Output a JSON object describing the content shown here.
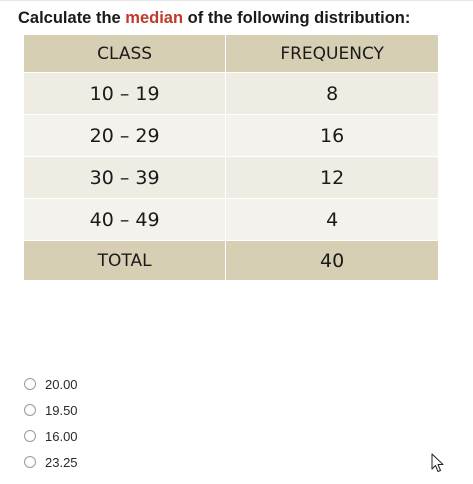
{
  "question": {
    "prefix": "Calculate the ",
    "highlight": "median",
    "suffix": " of the following distribution:"
  },
  "table": {
    "headers": [
      "CLASS",
      "FREQUENCY"
    ],
    "rows": [
      {
        "class": "10 – 19",
        "frequency": "8"
      },
      {
        "class": "20 – 29",
        "frequency": "16"
      },
      {
        "class": "30 – 39",
        "frequency": "12"
      },
      {
        "class": "40 – 49",
        "frequency": "4"
      }
    ],
    "total_label": "TOTAL",
    "total_value": "40"
  },
  "options": [
    "20.00",
    "19.50",
    "16.00",
    "23.25"
  ],
  "colors": {
    "highlight": "#c0392b",
    "header_bg": "#d6cfb4",
    "row_bg": "#efece4"
  },
  "icons": {
    "cursor": "mouse-pointer-icon"
  }
}
